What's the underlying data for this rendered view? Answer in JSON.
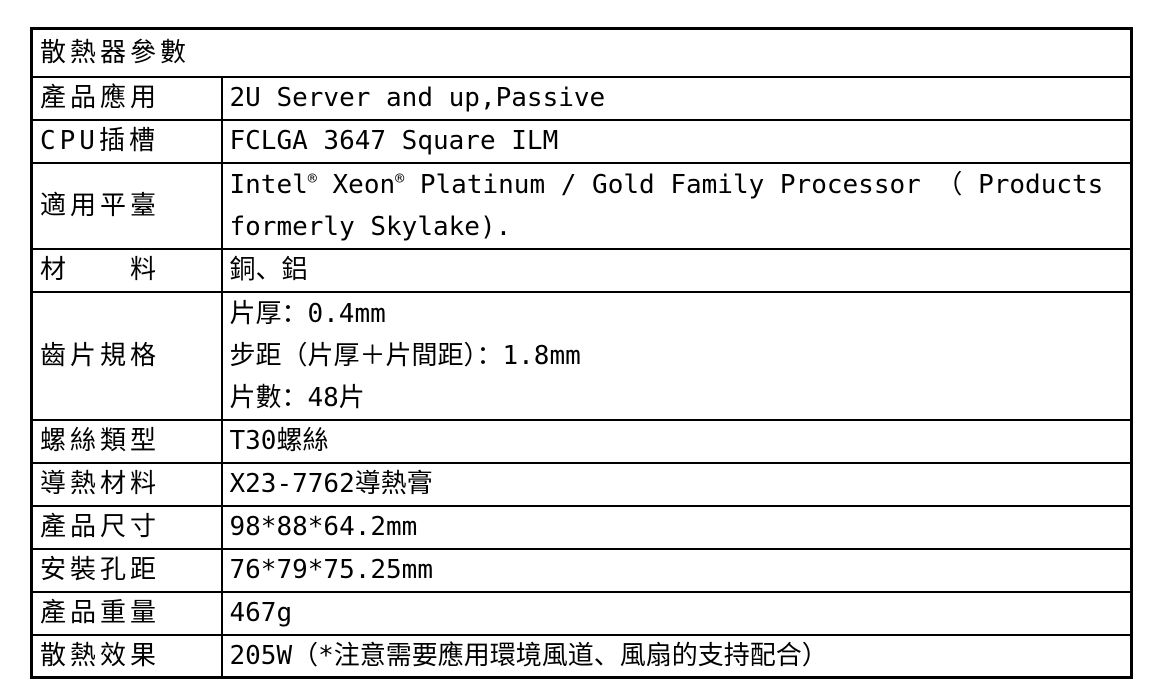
{
  "colors": {
    "background": "#ffffff",
    "border": "#000000",
    "text": "#000000"
  },
  "table": {
    "title": "散熱器參數",
    "rows": [
      {
        "label": "產品應用",
        "value": "2U Server and up,Passive"
      },
      {
        "label": "CPU插槽",
        "value": "FCLGA 3647 Square ILM"
      },
      {
        "label": "適用平臺",
        "line1": {
          "p1": "Intel",
          "sup1": "®",
          "p2": " Xeon",
          "sup2": "®",
          "p3": " Platinum / Gold Family Processor （ Products"
        },
        "line2": "formerly Skylake)."
      },
      {
        "label": "材　　料",
        "value": "銅、鋁"
      },
      {
        "label": "齒片規格",
        "lines": [
          "片厚：0.4mm",
          "步距（片厚＋片間距）：1.8mm",
          "片數：48片"
        ]
      },
      {
        "label": "螺絲類型",
        "value": "T30螺絲"
      },
      {
        "label": "導熱材料",
        "value": "X23-7762導熱膏"
      },
      {
        "label": "產品尺寸",
        "value": "98*88*64.2mm"
      },
      {
        "label": "安裝孔距",
        "value": "76*79*75.25mm"
      },
      {
        "label": "產品重量",
        "value": "467g"
      },
      {
        "label": "散熱效果",
        "value": "205W（*注意需要應用環境風道、風扇的支持配合）"
      }
    ]
  }
}
